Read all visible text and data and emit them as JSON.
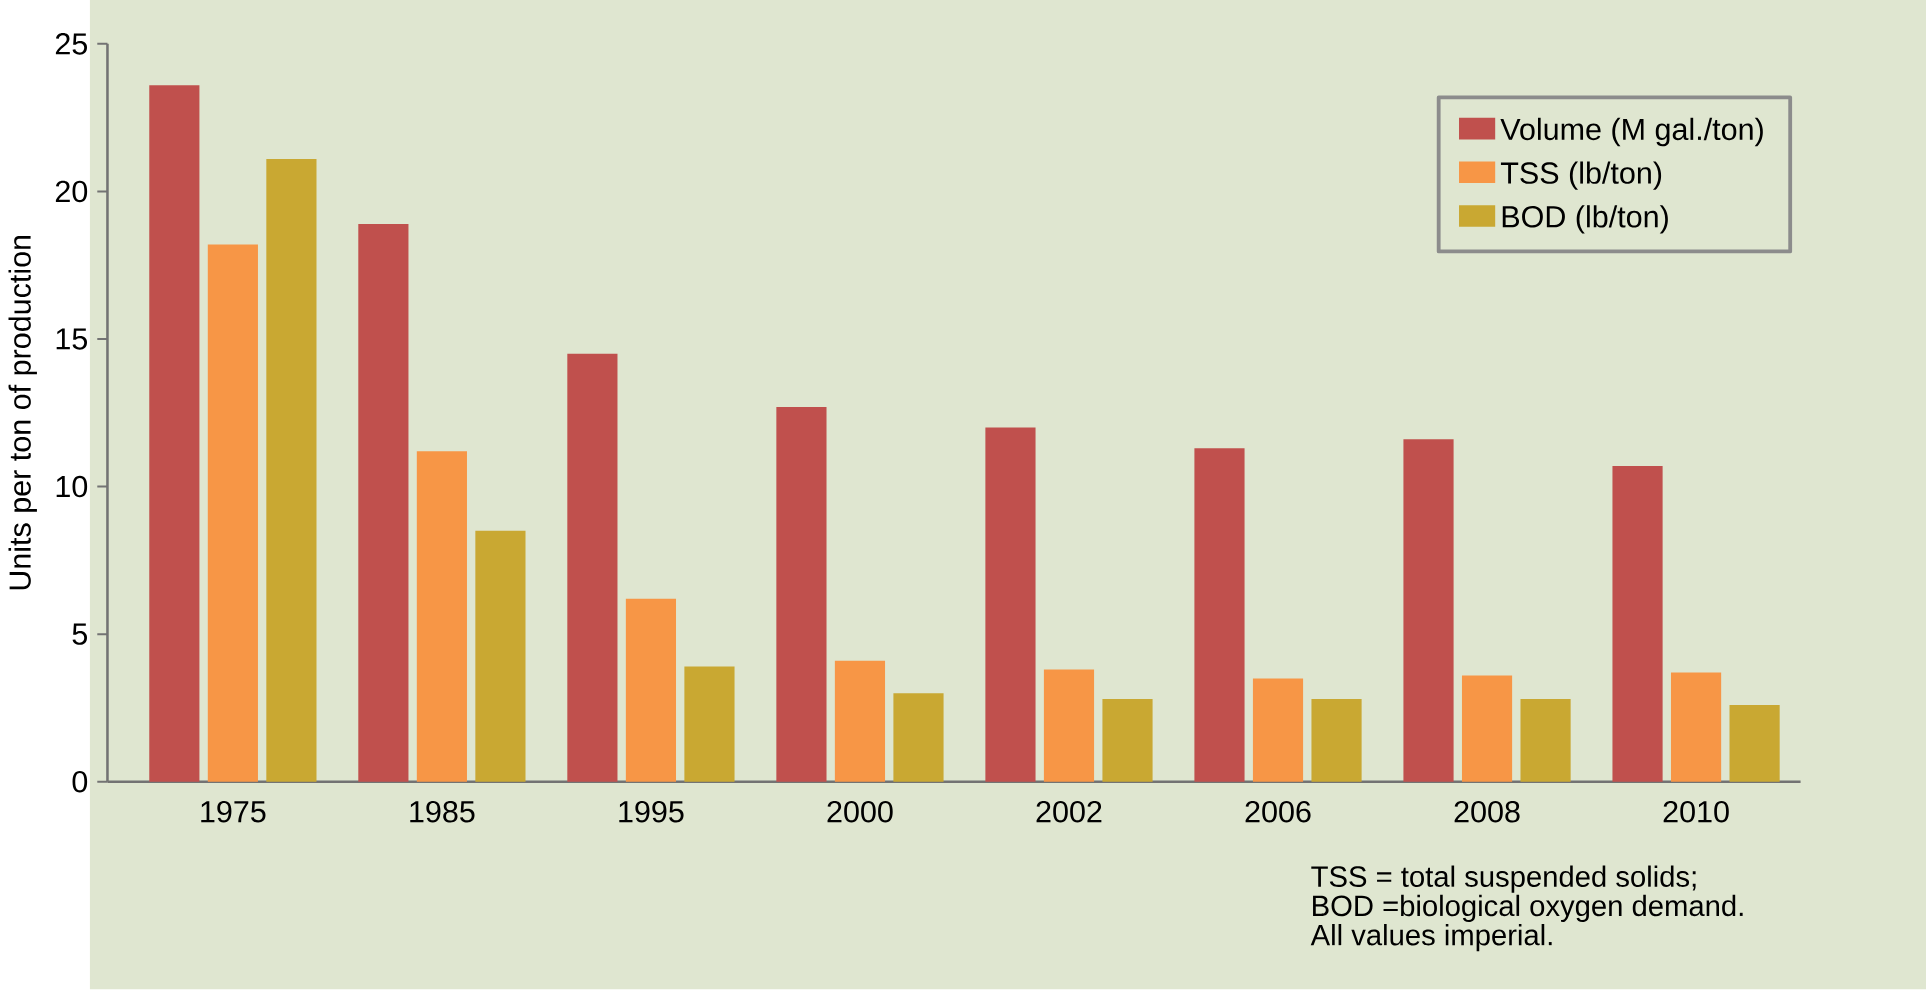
{
  "chart_data": {
    "type": "bar",
    "ylabel": "Units per ton of production",
    "categories": [
      "1975",
      "1985",
      "1995",
      "2000",
      "2002",
      "2006",
      "2008",
      "2010"
    ],
    "series": [
      {
        "name": "Volume (M gal./ton)",
        "color": "#c0504d",
        "values": [
          23.6,
          18.9,
          14.5,
          12.7,
          12.0,
          11.3,
          11.6,
          10.7
        ]
      },
      {
        "name": "TSS (lb/ton)",
        "color": "#f79646",
        "values": [
          18.2,
          11.2,
          6.2,
          4.1,
          3.8,
          3.5,
          3.6,
          3.7
        ]
      },
      {
        "name": "BOD (lb/ton)",
        "color": "#c9a832",
        "values": [
          21.1,
          8.5,
          3.9,
          3.0,
          2.8,
          2.8,
          2.8,
          2.6
        ]
      }
    ],
    "ylim": [
      0,
      25
    ],
    "yticks": [
      0,
      5,
      10,
      15,
      20,
      25
    ],
    "legend": "top right",
    "annotations": [
      "TSS = total suspended solids;",
      "BOD =biological oxygen demand.",
      "All values imperial."
    ]
  }
}
